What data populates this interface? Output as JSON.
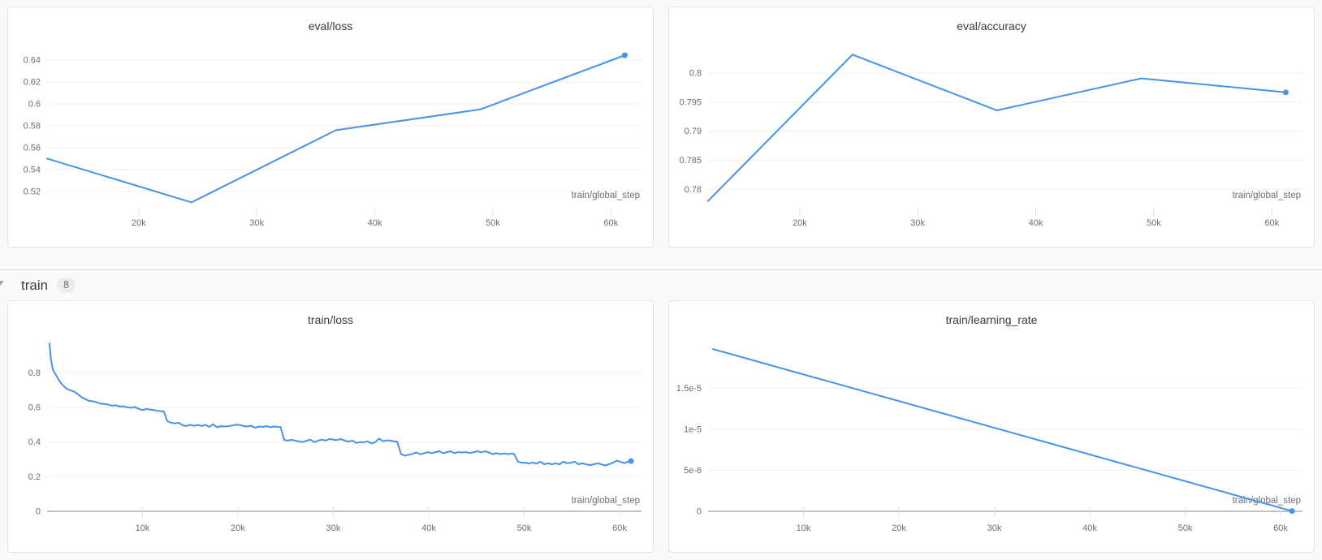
{
  "page": {
    "background": "#fafafa"
  },
  "section_header": {
    "label": "train",
    "count": "8"
  },
  "colors": {
    "line": "#4693e8",
    "grid": "#f0f0f2",
    "zero_axis": "#9ba0a5",
    "tick_mark": "#e2e3e6",
    "tick_text": "#696e78",
    "axis_label_text": "#6a6e77"
  },
  "chart_data": [
    {
      "type": "line",
      "title": "eval/loss",
      "xlabel": "train/global_step",
      "xlim": [
        12236,
        62600
      ],
      "ylim": [
        0.5065,
        0.652
      ],
      "x_tick_values": [
        20000,
        30000,
        40000,
        50000,
        60000
      ],
      "x_tick_labels": [
        "20k",
        "30k",
        "40k",
        "50k",
        "60k"
      ],
      "y_tick_values": [
        0.52,
        0.54,
        0.56,
        0.58,
        0.6,
        0.62,
        0.64
      ],
      "y_tick_labels": [
        "0.52",
        "0.54",
        "0.56",
        "0.58",
        "0.6",
        "0.62",
        "0.64"
      ],
      "zero_axis": false,
      "end_dot": true,
      "legend_position": "none",
      "grid": true,
      "points": [
        [
          12236,
          0.55
        ],
        [
          24472,
          0.51
        ],
        [
          36708,
          0.576
        ],
        [
          48944,
          0.595
        ],
        [
          61180,
          0.6445
        ]
      ]
    },
    {
      "type": "line",
      "title": "eval/accuracy",
      "xlabel": "train/global_step",
      "xlim": [
        12236,
        62600
      ],
      "ylim": [
        0.7771,
        0.8045
      ],
      "x_tick_values": [
        20000,
        30000,
        40000,
        50000,
        60000
      ],
      "x_tick_labels": [
        "20k",
        "30k",
        "40k",
        "50k",
        "60k"
      ],
      "y_tick_values": [
        0.78,
        0.785,
        0.79,
        0.795,
        0.8
      ],
      "y_tick_labels": [
        "0.78",
        "0.785",
        "0.79",
        "0.795",
        "0.8"
      ],
      "zero_axis": false,
      "end_dot": true,
      "legend_position": "none",
      "grid": true,
      "points": [
        [
          12236,
          0.778
        ],
        [
          24472,
          0.8032
        ],
        [
          36708,
          0.7936
        ],
        [
          48944,
          0.7991
        ],
        [
          61180,
          0.7967
        ]
      ]
    },
    {
      "type": "line",
      "title": "train/loss",
      "xlabel": "train/global_step",
      "xlim": [
        0,
        62300
      ],
      "ylim": [
        0,
        0.985
      ],
      "x_tick_values": [
        10000,
        20000,
        30000,
        40000,
        50000,
        60000
      ],
      "x_tick_labels": [
        "10k",
        "20k",
        "30k",
        "40k",
        "50k",
        "60k"
      ],
      "y_tick_values": [
        0,
        0.2,
        0.4,
        0.6,
        0.8
      ],
      "y_tick_labels": [
        "0",
        "0.2",
        "0.4",
        "0.6",
        "0.8"
      ],
      "zero_axis": true,
      "end_dot": true,
      "legend_position": "none",
      "grid": true,
      "points": [
        [
          250,
          0.97
        ],
        [
          400,
          0.88
        ],
        [
          600,
          0.82
        ],
        [
          800,
          0.8
        ],
        [
          1100,
          0.77
        ],
        [
          1400,
          0.745
        ],
        [
          1700,
          0.725
        ],
        [
          2000,
          0.71
        ],
        [
          2400,
          0.7
        ],
        [
          2800,
          0.693
        ],
        [
          3200,
          0.678
        ],
        [
          3600,
          0.66
        ],
        [
          4000,
          0.648
        ],
        [
          4400,
          0.638
        ],
        [
          4800,
          0.636
        ],
        [
          5200,
          0.63
        ],
        [
          5600,
          0.622
        ],
        [
          6000,
          0.62
        ],
        [
          6400,
          0.617
        ],
        [
          6800,
          0.61
        ],
        [
          7200,
          0.613
        ],
        [
          7600,
          0.605
        ],
        [
          8000,
          0.607
        ],
        [
          8400,
          0.601
        ],
        [
          8800,
          0.598
        ],
        [
          9200,
          0.603
        ],
        [
          9600,
          0.592
        ],
        [
          10000,
          0.585
        ],
        [
          10400,
          0.592
        ],
        [
          10800,
          0.588
        ],
        [
          11200,
          0.585
        ],
        [
          11600,
          0.58
        ],
        [
          12000,
          0.578
        ],
        [
          12236,
          0.578
        ],
        [
          12600,
          0.52
        ],
        [
          13000,
          0.512
        ],
        [
          13400,
          0.508
        ],
        [
          13800,
          0.512
        ],
        [
          14200,
          0.497
        ],
        [
          14600,
          0.493
        ],
        [
          15000,
          0.5
        ],
        [
          15400,
          0.494
        ],
        [
          15800,
          0.499
        ],
        [
          16200,
          0.493
        ],
        [
          16600,
          0.5
        ],
        [
          17000,
          0.488
        ],
        [
          17400,
          0.503
        ],
        [
          17800,
          0.486
        ],
        [
          18200,
          0.492
        ],
        [
          18600,
          0.49
        ],
        [
          19000,
          0.492
        ],
        [
          19400,
          0.496
        ],
        [
          19800,
          0.5
        ],
        [
          20200,
          0.499
        ],
        [
          20600,
          0.493
        ],
        [
          21000,
          0.49
        ],
        [
          21400,
          0.495
        ],
        [
          21800,
          0.482
        ],
        [
          22200,
          0.49
        ],
        [
          22600,
          0.488
        ],
        [
          23000,
          0.492
        ],
        [
          23400,
          0.486
        ],
        [
          23800,
          0.49
        ],
        [
          24200,
          0.488
        ],
        [
          24472,
          0.487
        ],
        [
          24850,
          0.412
        ],
        [
          25200,
          0.408
        ],
        [
          25600,
          0.414
        ],
        [
          26000,
          0.408
        ],
        [
          26400,
          0.404
        ],
        [
          26800,
          0.4
        ],
        [
          27200,
          0.408
        ],
        [
          27600,
          0.414
        ],
        [
          28000,
          0.399
        ],
        [
          28400,
          0.408
        ],
        [
          28800,
          0.414
        ],
        [
          29200,
          0.409
        ],
        [
          29600,
          0.418
        ],
        [
          30000,
          0.414
        ],
        [
          30400,
          0.412
        ],
        [
          30800,
          0.418
        ],
        [
          31200,
          0.408
        ],
        [
          31600,
          0.403
        ],
        [
          32000,
          0.409
        ],
        [
          32400,
          0.395
        ],
        [
          32800,
          0.4
        ],
        [
          33200,
          0.398
        ],
        [
          33600,
          0.405
        ],
        [
          34000,
          0.392
        ],
        [
          34400,
          0.4
        ],
        [
          34800,
          0.42
        ],
        [
          35200,
          0.405
        ],
        [
          35600,
          0.41
        ],
        [
          36000,
          0.408
        ],
        [
          36400,
          0.404
        ],
        [
          36708,
          0.402
        ],
        [
          37100,
          0.33
        ],
        [
          37500,
          0.322
        ],
        [
          37900,
          0.327
        ],
        [
          38300,
          0.332
        ],
        [
          38700,
          0.34
        ],
        [
          39100,
          0.33
        ],
        [
          39500,
          0.335
        ],
        [
          39900,
          0.342
        ],
        [
          40300,
          0.336
        ],
        [
          40700,
          0.342
        ],
        [
          41100,
          0.347
        ],
        [
          41500,
          0.336
        ],
        [
          41900,
          0.342
        ],
        [
          42300,
          0.347
        ],
        [
          42700,
          0.336
        ],
        [
          43100,
          0.342
        ],
        [
          43500,
          0.34
        ],
        [
          43900,
          0.342
        ],
        [
          44300,
          0.337
        ],
        [
          44700,
          0.342
        ],
        [
          45100,
          0.347
        ],
        [
          45500,
          0.341
        ],
        [
          45900,
          0.347
        ],
        [
          46300,
          0.34
        ],
        [
          46700,
          0.33
        ],
        [
          47100,
          0.336
        ],
        [
          47500,
          0.33
        ],
        [
          47900,
          0.335
        ],
        [
          48300,
          0.33
        ],
        [
          48700,
          0.334
        ],
        [
          48944,
          0.332
        ],
        [
          49350,
          0.287
        ],
        [
          49700,
          0.281
        ],
        [
          50100,
          0.281
        ],
        [
          50500,
          0.276
        ],
        [
          50900,
          0.282
        ],
        [
          51300,
          0.276
        ],
        [
          51700,
          0.287
        ],
        [
          52100,
          0.272
        ],
        [
          52500,
          0.277
        ],
        [
          52900,
          0.271
        ],
        [
          53300,
          0.277
        ],
        [
          53700,
          0.271
        ],
        [
          54100,
          0.287
        ],
        [
          54500,
          0.277
        ],
        [
          54900,
          0.281
        ],
        [
          55300,
          0.287
        ],
        [
          55700,
          0.272
        ],
        [
          56100,
          0.277
        ],
        [
          56500,
          0.271
        ],
        [
          56900,
          0.267
        ],
        [
          57300,
          0.272
        ],
        [
          57700,
          0.277
        ],
        [
          58100,
          0.271
        ],
        [
          58500,
          0.265
        ],
        [
          58900,
          0.272
        ],
        [
          59300,
          0.281
        ],
        [
          59700,
          0.292
        ],
        [
          60100,
          0.286
        ],
        [
          60500,
          0.278
        ],
        [
          60900,
          0.288
        ],
        [
          61200,
          0.29
        ]
      ]
    },
    {
      "type": "line",
      "title": "train/learning_rate",
      "xlabel": "train/global_step",
      "xlim": [
        0,
        62300
      ],
      "ylim": [
        0,
        2.08e-05
      ],
      "x_tick_values": [
        10000,
        20000,
        30000,
        40000,
        50000,
        60000
      ],
      "x_tick_labels": [
        "10k",
        "20k",
        "30k",
        "40k",
        "50k",
        "60k"
      ],
      "y_tick_values": [
        0,
        5e-06,
        1e-05,
        1.5e-05
      ],
      "y_tick_labels": [
        "0",
        "5e-6",
        "1e-5",
        "1.5e-5"
      ],
      "zero_axis": true,
      "end_dot": true,
      "legend_position": "none",
      "grid": true,
      "points": [
        [
          500,
          1.98e-05
        ],
        [
          61200,
          3e-08
        ]
      ]
    }
  ]
}
